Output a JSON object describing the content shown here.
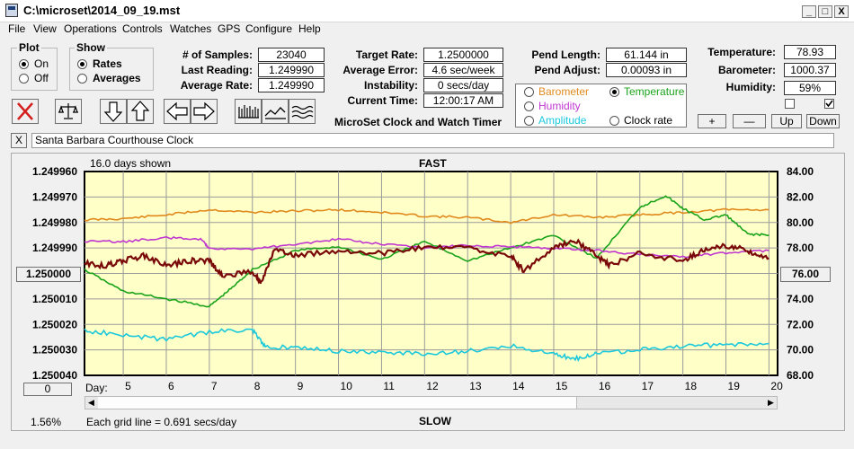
{
  "window": {
    "title": "C:\\microset\\2014_09_19.mst",
    "minimize": "_",
    "maximize": "□",
    "close": "X"
  },
  "menu": [
    "File",
    "View",
    "Operations",
    "Controls",
    "Watches",
    "GPS",
    "Configure",
    "Help"
  ],
  "plot": {
    "title": "Plot",
    "on": "On",
    "off": "Off",
    "selected": "On"
  },
  "show": {
    "title": "Show",
    "rates": "Rates",
    "averages": "Averages",
    "selected": "Rates"
  },
  "stats": {
    "samples_label": "# of Samples:",
    "samples": "23040",
    "last_reading_label": "Last Reading:",
    "last_reading": "1.249990",
    "average_rate_label": "Average Rate:",
    "average_rate": "1.249990"
  },
  "rate": {
    "target_rate_label": "Target Rate:",
    "target_rate": "1.2500000",
    "average_error_label": "Average Error:",
    "average_error": "4.6 sec/week",
    "instability_label": "Instability:",
    "instability": "0 secs/day",
    "current_time_label": "Current Time:",
    "current_time": "12:00:17 AM",
    "app_name": "MicroSet Clock and Watch Timer"
  },
  "pend": {
    "length_label": "Pend Length:",
    "length": "61.144 in",
    "adjust_label": "Pend Adjust:",
    "adjust": "0.00093 in"
  },
  "environment": {
    "temperature_label": "Temperature:",
    "temperature": "78.93",
    "barometer_label": "Barometer:",
    "barometer": "1000.37",
    "humidity_label": "Humidity:",
    "humidity": "59%",
    "checkbox1_checked": false,
    "checkbox2_checked": true
  },
  "aux_plot": {
    "options": [
      {
        "label": "Barometer",
        "color": "#e08a1e",
        "selected": false
      },
      {
        "label": "Temperature",
        "color": "#1aa31a",
        "selected": true
      },
      {
        "label": "Humidity",
        "color": "#c037d0",
        "selected": false
      },
      {
        "label": "Amplitude",
        "color": "#1bc8dc",
        "selected": false
      },
      {
        "label": "Clock rate",
        "color": "#000000",
        "selected": false
      }
    ]
  },
  "scale_buttons": {
    "plus": "+",
    "minus": "—",
    "up": "Up",
    "down": "Down"
  },
  "toolbar": [
    "clear-icon",
    "balance-icon",
    "arrow-down-icon",
    "arrow-up-icon",
    "arrow-left-icon",
    "arrow-right-icon",
    "bars-icon",
    "line-icon",
    "waves-icon"
  ],
  "watch_name": "Santa Barbara Courthouse Clock",
  "close_watch": "X",
  "chart_header": {
    "days_shown": "16.0 days shown",
    "fast": "FAST",
    "slow": "SLOW",
    "grid_note": "Each grid line = 0.691 secs/day",
    "percent": "1.56%",
    "left_button": "1.250000",
    "right_button": "76.00",
    "bottom_button": "0",
    "day_label": "Day:"
  },
  "chart_data": {
    "type": "line",
    "x_axis": {
      "label": "Day:",
      "ticks": [
        "5",
        "6",
        "7",
        "8",
        "9",
        "10",
        "11",
        "12",
        "13",
        "14",
        "15",
        "16",
        "17",
        "18",
        "19",
        "20"
      ],
      "range": [
        4.1,
        20.2
      ]
    },
    "y_left": {
      "ticks": [
        "1.249960",
        "1.249970",
        "1.249980",
        "1.249990",
        "1.250000",
        "1.250010",
        "1.250020",
        "1.250030",
        "1.250040"
      ],
      "range_top": 1.24996,
      "range_bottom": 1.25004
    },
    "y_right": {
      "ticks": [
        "84.00",
        "82.00",
        "80.00",
        "78.00",
        "76.00",
        "74.00",
        "72.00",
        "70.00",
        "68.00"
      ],
      "range": [
        68,
        84
      ]
    },
    "grid": true,
    "series": [
      {
        "color": "#e08a1e",
        "axis": "right",
        "x": [
          4.1,
          5,
          6,
          7,
          8,
          9,
          10,
          11,
          12,
          13,
          14,
          15,
          16,
          17,
          18,
          19,
          20
        ],
        "y": [
          80.2,
          80.3,
          80.6,
          81.0,
          80.8,
          80.9,
          81.0,
          80.8,
          80.5,
          80.4,
          80.0,
          80.6,
          80.4,
          80.6,
          80.8,
          81.0,
          81.0
        ]
      },
      {
        "color": "#1aa31a",
        "axis": "right",
        "x": [
          4.1,
          5,
          6,
          7,
          7.5,
          8,
          9,
          10,
          11,
          12,
          13,
          14,
          15,
          16,
          17,
          17.6,
          18,
          18.5,
          19,
          19.5,
          20
        ],
        "y": [
          76.3,
          74.6,
          74.0,
          73.4,
          74.8,
          76.3,
          77.8,
          78.1,
          77.1,
          78.5,
          77.0,
          78.0,
          79.0,
          77.2,
          81.2,
          82.1,
          81.1,
          80.2,
          80.6,
          79.1,
          79.0
        ]
      },
      {
        "color": "#c037d0",
        "axis": "right",
        "x": [
          4.1,
          5,
          6,
          6.8,
          7,
          8,
          9,
          10,
          11,
          12,
          13,
          14,
          15,
          16,
          17,
          18,
          19,
          20
        ],
        "y": [
          78.5,
          78.5,
          78.8,
          78.7,
          78.0,
          77.9,
          78.3,
          78.7,
          78.3,
          78.0,
          78.2,
          78.1,
          78.0,
          77.8,
          77.5,
          77.3,
          77.6,
          77.8
        ]
      },
      {
        "color": "#1bc8dc",
        "axis": "right",
        "x": [
          4.1,
          5,
          6,
          7,
          8,
          8.3,
          9,
          10,
          11,
          12,
          13,
          14,
          15,
          15.5,
          16,
          17,
          18,
          19,
          20
        ],
        "y": [
          71.5,
          71.2,
          70.8,
          71.4,
          71.6,
          70.2,
          70.2,
          69.9,
          69.8,
          69.7,
          69.9,
          70.3,
          69.7,
          69.3,
          69.7,
          70.0,
          70.3,
          70.4,
          70.5
        ]
      },
      {
        "color": "#7a0a0a",
        "axis": "left",
        "x": [
          4.1,
          4.6,
          5,
          5.5,
          6,
          6.5,
          7,
          7.3,
          8,
          8.2,
          8.5,
          9,
          10,
          11,
          12,
          13,
          14,
          14.3,
          15,
          15.5,
          16,
          16.3,
          17,
          18,
          18.5,
          19,
          19.5,
          20
        ],
        "y": [
          1.249996,
          1.249997,
          1.249995,
          1.249993,
          1.249997,
          1.249995,
          1.249995,
          1.250001,
          1.249999,
          1.250004,
          1.249991,
          1.249993,
          1.249991,
          1.249992,
          1.24999,
          1.24999,
          1.249993,
          1.249999,
          1.24999,
          1.249987,
          1.249993,
          1.249997,
          1.249992,
          1.249995,
          1.249991,
          1.249989,
          1.249991,
          1.249994
        ]
      }
    ]
  }
}
